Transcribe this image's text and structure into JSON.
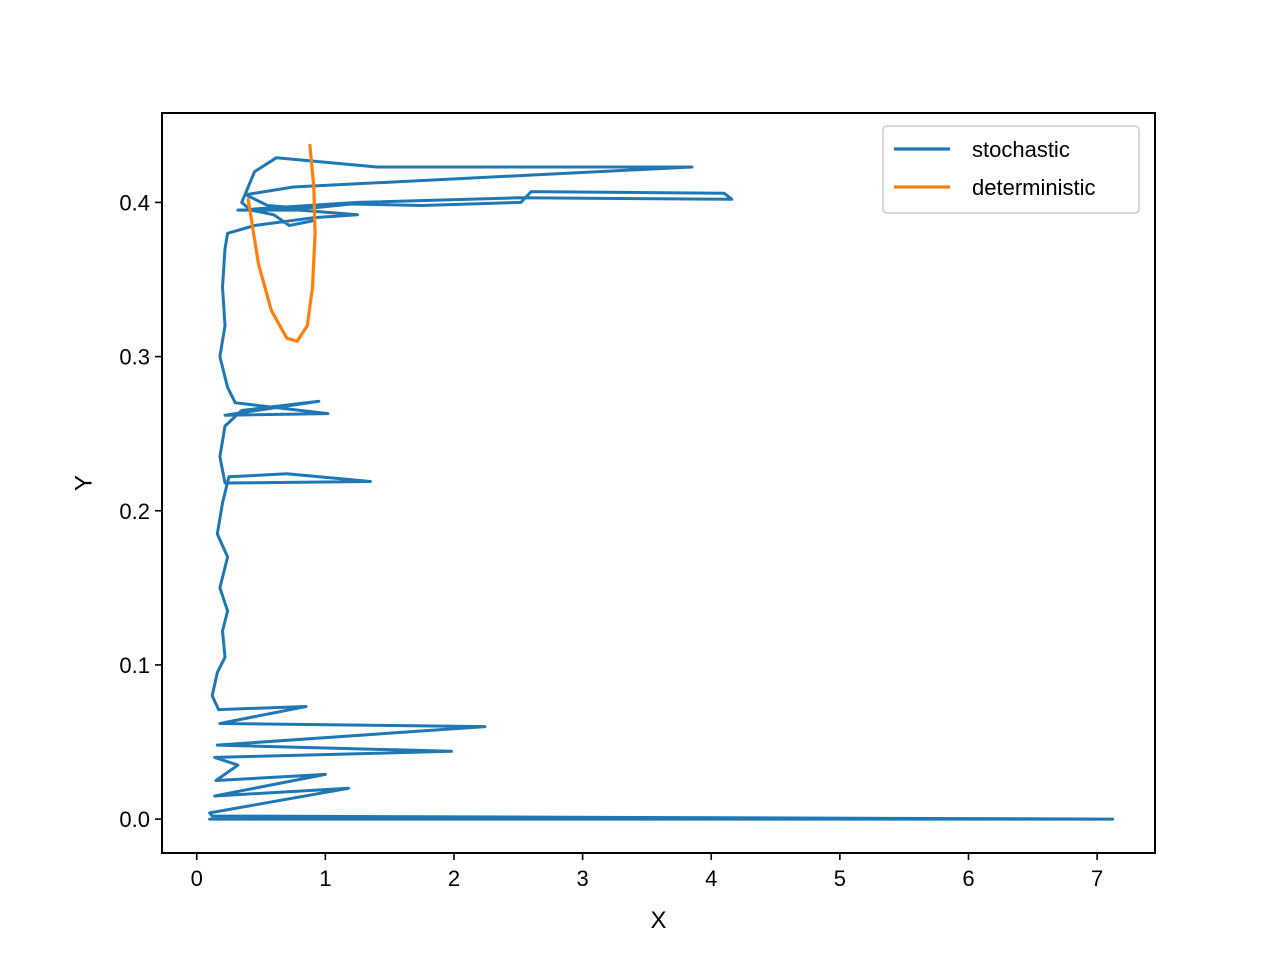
{
  "chart_data": {
    "type": "line",
    "title": "",
    "xlabel": "X",
    "ylabel": "Y",
    "xlim": [
      -0.27,
      7.45
    ],
    "ylim": [
      -0.022,
      0.458
    ],
    "xticks": [
      0,
      1,
      2,
      3,
      4,
      5,
      6,
      7
    ],
    "yticks": [
      0.0,
      0.1,
      0.2,
      0.3,
      0.4
    ],
    "ytick_labels": [
      "0.0",
      "0.1",
      "0.2",
      "0.3",
      "0.4"
    ],
    "grid": false,
    "legend_position": "top-right",
    "series": [
      {
        "name": "stochastic",
        "color": "#1f77b4",
        "points": [
          [
            0.1,
            0.0
          ],
          [
            7.12,
            0.0
          ],
          [
            0.12,
            0.002
          ],
          [
            0.1,
            0.004
          ],
          [
            1.18,
            0.02
          ],
          [
            0.14,
            0.015
          ],
          [
            1.0,
            0.029
          ],
          [
            0.15,
            0.025
          ],
          [
            0.32,
            0.035
          ],
          [
            0.14,
            0.04
          ],
          [
            1.98,
            0.044
          ],
          [
            0.16,
            0.048
          ],
          [
            2.24,
            0.06
          ],
          [
            0.18,
            0.062
          ],
          [
            0.85,
            0.073
          ],
          [
            0.17,
            0.071
          ],
          [
            0.12,
            0.08
          ],
          [
            0.16,
            0.095
          ],
          [
            0.22,
            0.105
          ],
          [
            0.2,
            0.122
          ],
          [
            0.24,
            0.135
          ],
          [
            0.18,
            0.15
          ],
          [
            0.24,
            0.17
          ],
          [
            0.16,
            0.185
          ],
          [
            0.2,
            0.205
          ],
          [
            0.25,
            0.222
          ],
          [
            0.7,
            0.224
          ],
          [
            1.35,
            0.219
          ],
          [
            0.22,
            0.218
          ],
          [
            0.18,
            0.235
          ],
          [
            0.22,
            0.255
          ],
          [
            0.35,
            0.265
          ],
          [
            0.95,
            0.271
          ],
          [
            0.22,
            0.262
          ],
          [
            1.02,
            0.263
          ],
          [
            0.3,
            0.27
          ],
          [
            0.24,
            0.28
          ],
          [
            0.18,
            0.3
          ],
          [
            0.22,
            0.32
          ],
          [
            0.2,
            0.345
          ],
          [
            0.22,
            0.37
          ],
          [
            0.24,
            0.38
          ],
          [
            0.45,
            0.385
          ],
          [
            0.9,
            0.39
          ],
          [
            1.25,
            0.392
          ],
          [
            0.8,
            0.395
          ],
          [
            0.32,
            0.395
          ],
          [
            1.25,
            0.4
          ],
          [
            2.5,
            0.403
          ],
          [
            4.16,
            0.402
          ],
          [
            4.1,
            0.406
          ],
          [
            2.6,
            0.407
          ],
          [
            2.52,
            0.4
          ],
          [
            1.75,
            0.398
          ],
          [
            1.2,
            0.399
          ],
          [
            0.85,
            0.396
          ],
          [
            0.55,
            0.398
          ],
          [
            0.38,
            0.405
          ],
          [
            0.75,
            0.41
          ],
          [
            3.85,
            0.423
          ],
          [
            1.4,
            0.423
          ],
          [
            1.0,
            0.426
          ],
          [
            0.62,
            0.429
          ],
          [
            0.45,
            0.42
          ],
          [
            0.4,
            0.41
          ],
          [
            0.35,
            0.4
          ],
          [
            0.42,
            0.395
          ],
          [
            0.6,
            0.392
          ],
          [
            0.72,
            0.385
          ],
          [
            0.9,
            0.388
          ]
        ]
      },
      {
        "name": "deterministic",
        "color": "#ff7f0e",
        "points": [
          [
            0.4,
            0.402
          ],
          [
            0.48,
            0.36
          ],
          [
            0.58,
            0.33
          ],
          [
            0.7,
            0.312
          ],
          [
            0.78,
            0.31
          ],
          [
            0.86,
            0.32
          ],
          [
            0.9,
            0.345
          ],
          [
            0.92,
            0.38
          ],
          [
            0.91,
            0.41
          ],
          [
            0.88,
            0.437
          ]
        ]
      }
    ]
  }
}
